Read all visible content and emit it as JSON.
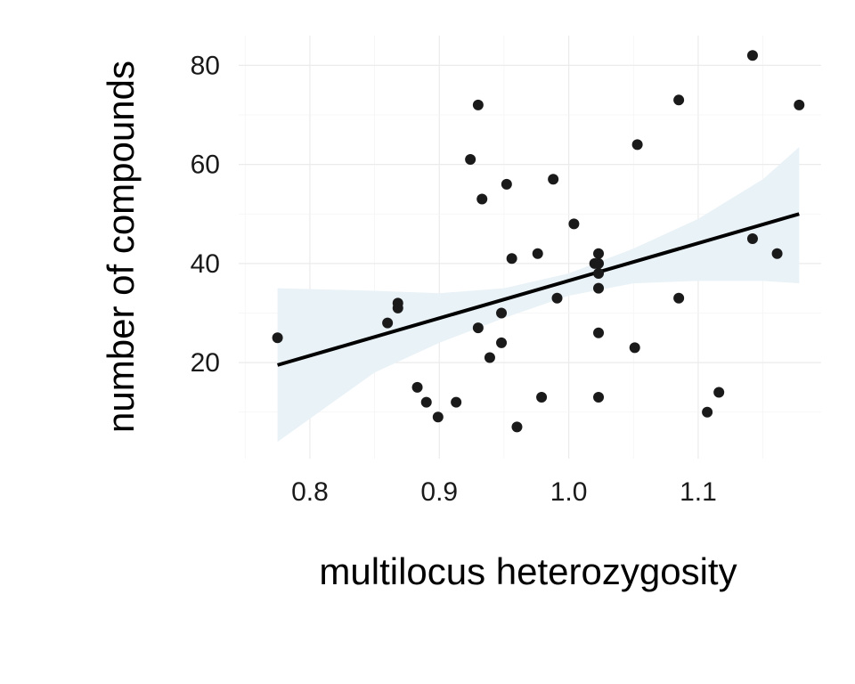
{
  "chart_data": {
    "type": "scatter",
    "xlabel": "multilocus heterozygosity",
    "ylabel": "number of compounds",
    "xlim": [
      0.745,
      1.195
    ],
    "ylim": [
      0.6,
      86
    ],
    "x_ticks": [
      0.8,
      0.9,
      1.0,
      1.1
    ],
    "x_tick_labels": [
      "0.8",
      "0.9",
      "1.0",
      "1.1"
    ],
    "y_ticks": [
      20,
      40,
      60,
      80
    ],
    "y_tick_labels": [
      "20",
      "40",
      "60",
      "80"
    ],
    "grid": true,
    "colors": {
      "points": "#1a1a1a",
      "fit_line": "#000000",
      "ribbon": "#e9f2f7"
    },
    "series": [
      {
        "points": [
          {
            "x": 0.775,
            "y": 25
          },
          {
            "x": 0.86,
            "y": 28
          },
          {
            "x": 0.868,
            "y": 31
          },
          {
            "x": 0.868,
            "y": 32
          },
          {
            "x": 0.883,
            "y": 15
          },
          {
            "x": 0.89,
            "y": 12
          },
          {
            "x": 0.899,
            "y": 9
          },
          {
            "x": 0.913,
            "y": 12
          },
          {
            "x": 0.924,
            "y": 61
          },
          {
            "x": 0.93,
            "y": 72
          },
          {
            "x": 0.93,
            "y": 27
          },
          {
            "x": 0.933,
            "y": 53
          },
          {
            "x": 0.939,
            "y": 21
          },
          {
            "x": 0.948,
            "y": 30
          },
          {
            "x": 0.948,
            "y": 24
          },
          {
            "x": 0.952,
            "y": 56
          },
          {
            "x": 0.956,
            "y": 41
          },
          {
            "x": 0.96,
            "y": 7
          },
          {
            "x": 0.976,
            "y": 42
          },
          {
            "x": 0.979,
            "y": 13
          },
          {
            "x": 0.988,
            "y": 57
          },
          {
            "x": 0.991,
            "y": 33
          },
          {
            "x": 1.004,
            "y": 48
          },
          {
            "x": 1.02,
            "y": 40
          },
          {
            "x": 1.023,
            "y": 42
          },
          {
            "x": 1.023,
            "y": 40
          },
          {
            "x": 1.023,
            "y": 38
          },
          {
            "x": 1.023,
            "y": 35
          },
          {
            "x": 1.023,
            "y": 26
          },
          {
            "x": 1.023,
            "y": 13
          },
          {
            "x": 1.051,
            "y": 23
          },
          {
            "x": 1.053,
            "y": 64
          },
          {
            "x": 1.085,
            "y": 73
          },
          {
            "x": 1.085,
            "y": 33
          },
          {
            "x": 1.107,
            "y": 10
          },
          {
            "x": 1.116,
            "y": 14
          },
          {
            "x": 1.142,
            "y": 82
          },
          {
            "x": 1.142,
            "y": 45
          },
          {
            "x": 1.161,
            "y": 42
          },
          {
            "x": 1.178,
            "y": 72
          }
        ]
      }
    ],
    "fit": {
      "x_start": 0.775,
      "y_start": 19.5,
      "x_end": 1.178,
      "y_end": 50,
      "ribbon_x": [
        0.775,
        0.85,
        0.9,
        0.95,
        1.0,
        1.05,
        1.1,
        1.15,
        1.178
      ],
      "ribbon_lower": [
        4,
        18,
        24,
        29,
        33.5,
        36,
        36.5,
        36.5,
        36
      ],
      "ribbon_upper": [
        35,
        34.5,
        34,
        35,
        38,
        43,
        49,
        57,
        63.5
      ]
    }
  }
}
